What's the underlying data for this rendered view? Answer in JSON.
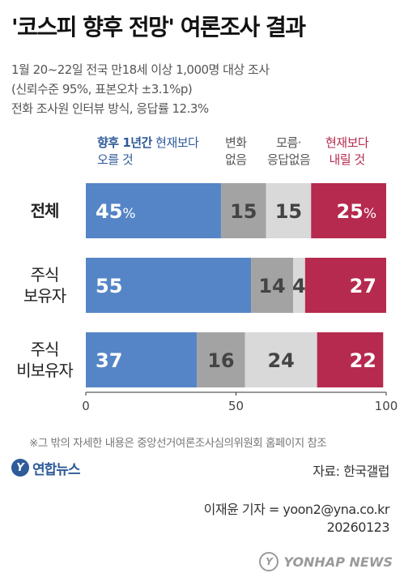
{
  "title": "'코스피 향후 전망' 여론조사 결과",
  "subtitle_lines": [
    "1월 20~22일 전국 만18세 이상 1,000명 대상 조사",
    "(신뢰수준 95%, 표본오차 ±3.1%p)",
    "전화 조사원 인터뷰 방식, 응답률 12.3%"
  ],
  "legend": {
    "up_strong": "향후 1년간",
    "up_rest": " 현재보다",
    "up_line2": "오를 것",
    "nochange_line1": "변화",
    "nochange_line2": "없음",
    "unknown_line1": "모름·",
    "unknown_line2": "응답없음",
    "down_line1": "현재보다",
    "down_line2": "내릴 것"
  },
  "colors": {
    "up": "#5585c6",
    "nochange": "#a3a3a3",
    "unknown": "#d9d9d9",
    "down": "#b52a4e",
    "up_text": "#2e5b9a",
    "down_text": "#b52a4e"
  },
  "chart_data": {
    "type": "bar",
    "orientation": "horizontal-stacked",
    "categories": [
      {
        "lines": [
          "전체"
        ],
        "bold": true
      },
      {
        "lines": [
          "주식",
          "보유자"
        ],
        "bold": false
      },
      {
        "lines": [
          "주식",
          "비보유자"
        ],
        "bold": false
      }
    ],
    "series": [
      {
        "key": "up",
        "values": [
          45,
          55,
          37
        ],
        "labels": [
          "45%",
          "55",
          "37"
        ]
      },
      {
        "key": "nochange",
        "values": [
          15,
          14,
          16
        ],
        "labels": [
          "15",
          "14",
          "16"
        ]
      },
      {
        "key": "unknown",
        "values": [
          15,
          4,
          24
        ],
        "labels": [
          "15",
          "4",
          "24"
        ]
      },
      {
        "key": "down",
        "values": [
          25,
          27,
          22
        ],
        "labels": [
          "25%",
          "27",
          "22"
        ]
      }
    ],
    "xlim": [
      0,
      100
    ],
    "xticks": [
      "0",
      "50",
      "100"
    ]
  },
  "footnote": "※그 밖의 자세한 내용은 중앙선거여론조사심의위원회 홈페이지 참조",
  "logo_text": "연합뉴스",
  "source": "자료: 한국갤럽",
  "credit_line1": "이재윤 기자 = yoon2@yna.co.kr",
  "credit_line2": "20260123",
  "watermark_text": "YONHAP NEWS"
}
